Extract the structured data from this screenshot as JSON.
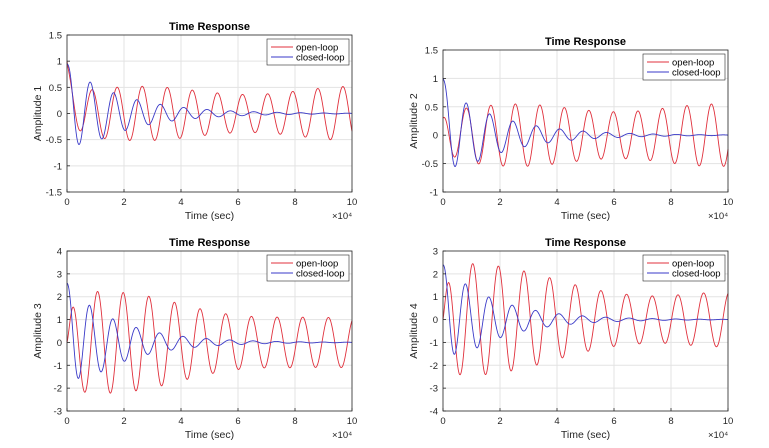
{
  "figure": {
    "background": "#ffffff"
  },
  "colors": {
    "open_loop": "#e0303c",
    "closed_loop": "#3a3ac8",
    "grid": "#e3e3e3",
    "axis": "#262626"
  },
  "chart_data": [
    {
      "type": "line",
      "title": "Time Response",
      "xlabel": "Time (sec)",
      "ylabel": "Amplitude 1",
      "xlim": [
        0,
        10
      ],
      "ylim": [
        -1.5,
        1.5
      ],
      "x_exponent": "×10⁴",
      "xticks": [
        0,
        2,
        4,
        6,
        8,
        10
      ],
      "yticks": [
        -1.5,
        -1,
        -0.5,
        0,
        0.5,
        1,
        1.5
      ],
      "ytick_labels": [
        "-1.5",
        "-1",
        "-0.5",
        "0",
        "0.5",
        "1",
        "1.5"
      ],
      "grid": true,
      "legend_position": "top-right",
      "series": [
        {
          "name": "open-loop",
          "color": "#e0303c",
          "y0": 1.0,
          "amplitude": 0.85,
          "period": 0.88,
          "phase": 0,
          "decay": 0,
          "min_amplitude": 0.52,
          "beat_period": 7.5,
          "beat_depth": 0.3
        },
        {
          "name": "closed-loop",
          "color": "#3a3ac8",
          "y0": 0.95,
          "amplitude": 0.9,
          "period": 0.82,
          "phase": 0,
          "decay": 0.5
        }
      ]
    },
    {
      "type": "line",
      "title": "Time Response",
      "xlabel": "Time (sec)",
      "ylabel": "Amplitude 2",
      "xlim": [
        0,
        10
      ],
      "ylim": [
        -1,
        1.5
      ],
      "x_exponent": "×10⁴",
      "xticks": [
        0,
        2,
        4,
        6,
        8,
        10
      ],
      "yticks": [
        -1,
        -0.5,
        0,
        0.5,
        1,
        1.5
      ],
      "ytick_labels": [
        "-1",
        "-0.5",
        "0",
        "0.5",
        "1",
        "1.5"
      ],
      "grid": true,
      "legend_position": "top-right",
      "series": [
        {
          "name": "open-loop",
          "color": "#e0303c",
          "y0": 0.3,
          "amplitude": 0.95,
          "period": 0.86,
          "phase": 0.3,
          "decay": 0,
          "min_amplitude": 0.55,
          "beat_period": 7.0,
          "beat_depth": 0.25
        },
        {
          "name": "closed-loop",
          "color": "#3a3ac8",
          "y0": 1.0,
          "amplitude": 0.85,
          "period": 0.82,
          "phase": 0,
          "decay": 0.5
        }
      ]
    },
    {
      "type": "line",
      "title": "Time Response",
      "xlabel": "Time (sec)",
      "ylabel": "Amplitude 3",
      "xlim": [
        0,
        10
      ],
      "ylim": [
        -3,
        4
      ],
      "x_exponent": "×10⁴",
      "xticks": [
        0,
        2,
        4,
        6,
        8,
        10
      ],
      "yticks": [
        -3,
        -2,
        -1,
        0,
        1,
        2,
        3,
        4
      ],
      "ytick_labels": [
        "-3",
        "-2",
        "-1",
        "0",
        "1",
        "2",
        "3",
        "4"
      ],
      "grid": true,
      "legend_position": "top-right",
      "series": [
        {
          "name": "open-loop",
          "color": "#e0303c",
          "y0": 0.0,
          "amplitude": 2.7,
          "period": 0.9,
          "phase": -1.2,
          "decay": 0.1,
          "min_amplitude": 1.1,
          "beat_period": 7.0,
          "beat_depth": 0.2
        },
        {
          "name": "closed-loop",
          "color": "#3a3ac8",
          "y0": 2.6,
          "amplitude": 2.5,
          "period": 0.82,
          "phase": 0.2,
          "decay": 0.55
        }
      ]
    },
    {
      "type": "line",
      "title": "Time Response",
      "xlabel": "Time (sec)",
      "ylabel": "Amplitude 4",
      "xlim": [
        0,
        10
      ],
      "ylim": [
        -4,
        3
      ],
      "x_exponent": "×10⁴",
      "xticks": [
        0,
        2,
        4,
        6,
        8,
        10
      ],
      "yticks": [
        -4,
        -3,
        -2,
        -1,
        0,
        1,
        2,
        3
      ],
      "ytick_labels": [
        "-4",
        "-3",
        "-2",
        "-1",
        "0",
        "1",
        "2",
        "3"
      ],
      "grid": true,
      "legend_position": "top-right",
      "series": [
        {
          "name": "open-loop",
          "color": "#e0303c",
          "y0": 0.0,
          "amplitude": 3.0,
          "period": 0.9,
          "phase": -1.0,
          "decay": 0.12,
          "min_amplitude": 1.2,
          "beat_period": 7.5,
          "beat_depth": 0.2
        },
        {
          "name": "closed-loop",
          "color": "#3a3ac8",
          "y0": 2.4,
          "amplitude": 2.4,
          "period": 0.82,
          "phase": 0.2,
          "decay": 0.55
        }
      ]
    }
  ]
}
